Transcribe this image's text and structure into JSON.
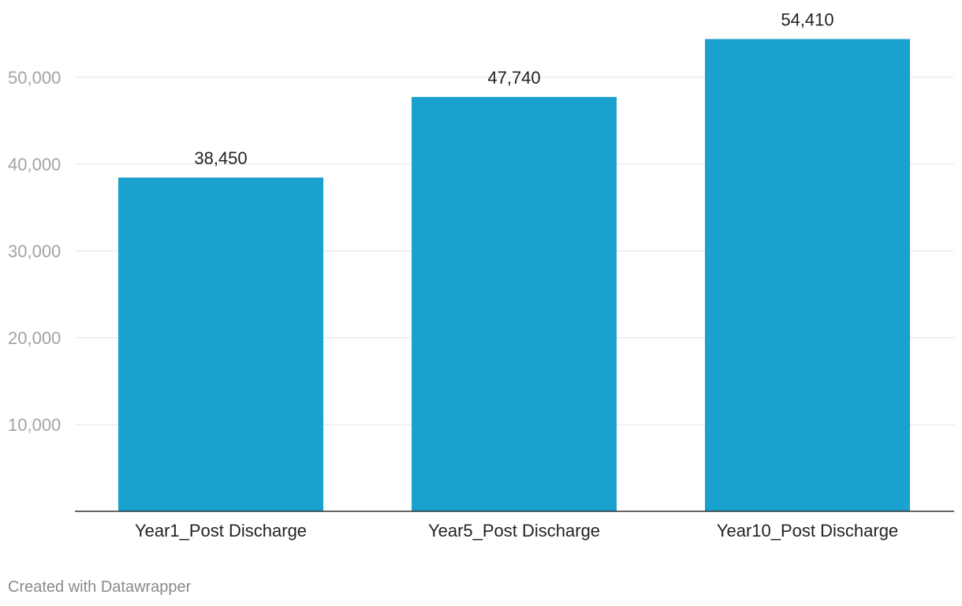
{
  "chart_data": {
    "type": "bar",
    "categories": [
      "Year1_Post Discharge",
      "Year5_Post Discharge",
      "Year10_Post Discharge"
    ],
    "values": [
      38450,
      47740,
      54410
    ],
    "value_labels": [
      "38,450",
      "47,740",
      "54,410"
    ],
    "y_ticks": [
      10000,
      20000,
      30000,
      40000,
      50000
    ],
    "y_tick_labels": [
      "10,000",
      "20,000",
      "30,000",
      "40,000",
      "50,000"
    ],
    "ylim": [
      0,
      55000
    ],
    "grid": true,
    "bar_color": "#1aa1cd",
    "title": "",
    "xlabel": "",
    "ylabel": ""
  },
  "footer": {
    "credit": "Created with Datawrapper"
  }
}
